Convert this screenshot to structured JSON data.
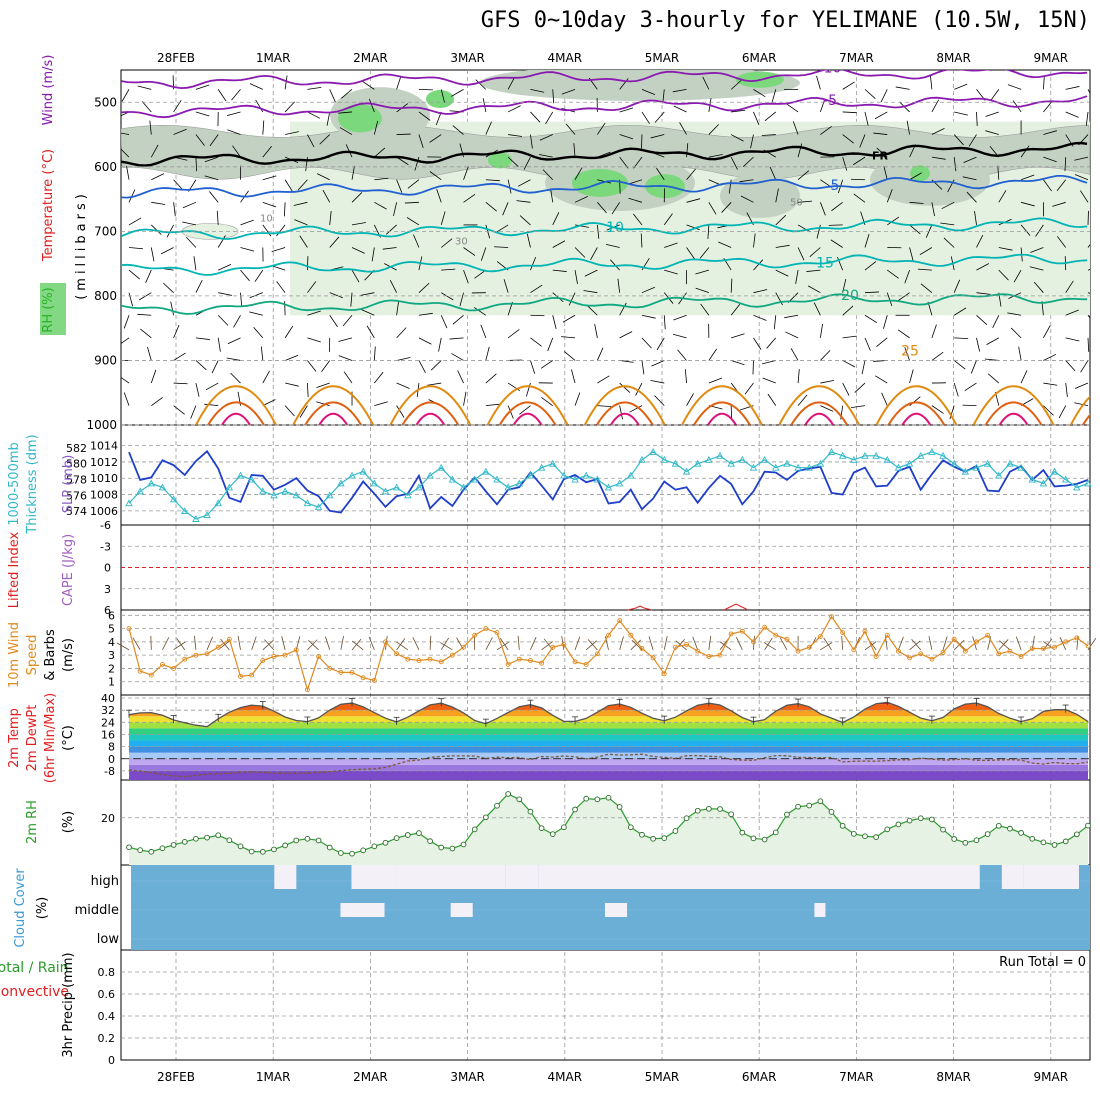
{
  "title": "GFS 0~10day 3-hourly for YELIMANE (10.5W, 15N)",
  "colors": {
    "temperature_cold": "#8a1ab0",
    "temperature_mid": "#2060d0",
    "temperature_warm": "#00b4b4",
    "temperature_hot": "#e08a10",
    "freezing": "#000000",
    "rh_light": "#e4f0e0",
    "rh_mid": "#c3d1c3",
    "rh_high": "#7cd87c",
    "slp": "#1f3fc8",
    "thickness": "#33b8c8",
    "lifted_index": "#e02020",
    "wind_speed": "#e08a20",
    "rh2m": "#2a9d2a",
    "cloud": "#6baed6",
    "cloud_clear": "#f3f0f8"
  },
  "chart_data": [
    {
      "id": "upper",
      "type": "contour",
      "ylabels": [
        "Wind (m/s)",
        "Temperature (°C)",
        "RH (%)",
        "(millibars)"
      ],
      "yticks": [
        500,
        600,
        700,
        800,
        900,
        1000
      ],
      "yrange": [
        1000,
        450
      ],
      "x_ticks": [
        "28FEB",
        "1MAR",
        "2MAR",
        "3MAR",
        "4MAR",
        "5MAR",
        "6MAR",
        "7MAR",
        "8MAR",
        "9MAR"
      ],
      "temperature_levels": [
        {
          "label": "-10",
          "pressure": 470
        },
        {
          "label": "-5",
          "pressure": 515
        },
        {
          "label": "FR",
          "pressure": 590
        },
        {
          "label": "5",
          "pressure": 640
        },
        {
          "label": "10",
          "pressure": 705
        },
        {
          "label": "15",
          "pressure": 760
        },
        {
          "label": "20",
          "pressure": 820
        },
        {
          "label": "25",
          "pressure": 895
        }
      ],
      "rh_labels": [
        "10",
        "30",
        "50"
      ]
    },
    {
      "id": "slp_thickness",
      "type": "line",
      "ylabels": [
        "1000-500mb",
        "Thickness (dm)",
        "SLP (mb)"
      ],
      "left_ticks": [
        574,
        576,
        578,
        580,
        582
      ],
      "right_ticks": [
        1006,
        1008,
        1010,
        1012,
        1014
      ],
      "series": [
        {
          "name": "SLP (mb)",
          "values": [
            1013.2,
            1009.8,
            1010.1,
            1012.2,
            1011.6,
            1010.4,
            1012.1,
            1013.3,
            1011.2,
            1007.6,
            1007.1,
            1010.4,
            1010.3,
            1008.6,
            1009.2,
            1010.0,
            1008.5,
            1007.8,
            1006.0,
            1005.8,
            1007.6,
            1009.6,
            1008.1,
            1006.5,
            1007.8,
            1008.1,
            1010.3,
            1006.3,
            1007.7,
            1006.6,
            1008.6,
            1010.1,
            1008.4,
            1006.8,
            1008.6,
            1008.9,
            1010.7,
            1009.1,
            1007.4,
            1009.9,
            1010.4,
            1009.5,
            1009.9,
            1006.9,
            1007.1,
            1008.6,
            1006.2,
            1007.5,
            1009.6,
            1008.6,
            1008.9,
            1007.0,
            1008.8,
            1010.3,
            1009.3,
            1006.8,
            1008.4,
            1010.8,
            1010.7,
            1009.8,
            1010.9,
            1011.2,
            1011.4,
            1008.2,
            1008.0,
            1010.7,
            1011.3,
            1009.0,
            1009.1,
            1010.9,
            1011.4,
            1008.6,
            1010.5,
            1012.2,
            1011.4,
            1010.8,
            1011.5,
            1008.5,
            1008.4,
            1010.8,
            1011.5,
            1009.8,
            1011.0,
            1009.0,
            1009.1,
            1009.3,
            1009.8
          ]
        },
        {
          "name": "1000-500mb Thickness (dm)",
          "values": [
            575.0,
            576.5,
            577.5,
            577.0,
            575.5,
            574.0,
            573.0,
            573.5,
            575.0,
            577.0,
            578.5,
            578.0,
            576.5,
            576.0,
            576.5,
            576.0,
            575.0,
            574.5,
            576.0,
            577.5,
            578.5,
            579.0,
            577.5,
            576.5,
            577.0,
            576.0,
            577.0,
            578.5,
            579.5,
            578.0,
            577.0,
            578.0,
            579.0,
            578.0,
            577.0,
            577.5,
            578.5,
            579.5,
            580.0,
            578.5,
            578.0,
            578.5,
            578.0,
            577.0,
            577.5,
            578.5,
            580.5,
            581.5,
            580.5,
            580.0,
            579.0,
            580.0,
            580.5,
            581.0,
            580.0,
            580.5,
            579.5,
            580.5,
            579.5,
            580.0,
            579.5,
            579.5,
            580.0,
            581.5,
            581.0,
            580.5,
            581.0,
            581.0,
            580.5,
            579.5,
            580.0,
            581.0,
            581.5,
            581.0,
            580.0,
            579.0,
            579.5,
            580.0,
            578.5,
            580.0,
            579.5,
            578.0,
            577.5,
            579.0,
            578.0,
            577.0,
            577.5
          ]
        }
      ]
    },
    {
      "id": "cape_li",
      "type": "line",
      "ylabels": [
        "Lifted Index",
        "CAPE (J/kg)"
      ],
      "yticks": [
        "6",
        "3",
        "0",
        "-3",
        "-6"
      ],
      "yrange": [
        6,
        -6
      ],
      "series": [
        {
          "name": "Lifted Index",
          "values": [
            0,
            0,
            0,
            0,
            0,
            0,
            0,
            0,
            0,
            0,
            0,
            0,
            0,
            0,
            0,
            0,
            0,
            0,
            0,
            0,
            0,
            0,
            0,
            0,
            0,
            0,
            0,
            0,
            0,
            0,
            0,
            0,
            0,
            0,
            0,
            0,
            0,
            0,
            0,
            0,
            0,
            0,
            0,
            0,
            0,
            0,
            0,
            0,
            0,
            0,
            0,
            0,
            0,
            0,
            0,
            0,
            0,
            0,
            0,
            0,
            0,
            0,
            0,
            0,
            0,
            0,
            0,
            0,
            0,
            0,
            0,
            0,
            0,
            0,
            0,
            0,
            0,
            0,
            0,
            0,
            0,
            0,
            0,
            0,
            0,
            0,
            0
          ]
        }
      ],
      "zero_line": 0
    },
    {
      "id": "wind10m",
      "type": "line",
      "ylabels": [
        "10m Wind",
        "Speed",
        "& Barbs",
        "(m/s)"
      ],
      "yticks": [
        1,
        2,
        3,
        4,
        5,
        6
      ],
      "yrange": [
        0,
        6.4
      ],
      "series": [
        {
          "name": "10m Wind Speed",
          "values": [
            5.0,
            1.8,
            1.5,
            2.3,
            2.0,
            2.7,
            3.0,
            3.1,
            3.6,
            4.2,
            1.4,
            1.5,
            2.6,
            2.9,
            3.0,
            3.4,
            0.4,
            2.9,
            2.0,
            1.7,
            1.7,
            1.3,
            1.1,
            4.0,
            3.1,
            2.7,
            2.6,
            2.7,
            2.5,
            3.0,
            3.6,
            4.5,
            5.0,
            4.7,
            2.3,
            2.7,
            2.6,
            2.4,
            3.6,
            3.8,
            2.5,
            2.3,
            3.1,
            4.5,
            5.6,
            4.5,
            3.5,
            2.8,
            1.6,
            3.6,
            3.8,
            3.3,
            2.9,
            3.0,
            4.6,
            4.8,
            4.0,
            5.1,
            4.5,
            4.2,
            3.3,
            3.6,
            4.4,
            5.9,
            4.7,
            3.4,
            4.8,
            2.9,
            4.5,
            3.3,
            2.8,
            3.1,
            2.7,
            3.2,
            4.2,
            3.3,
            4.0,
            4.5,
            3.1,
            3.3,
            2.9,
            3.5,
            3.5,
            3.6,
            4.0,
            4.3,
            3.7
          ]
        }
      ]
    },
    {
      "id": "temp2m",
      "type": "area",
      "ylabels": [
        "2m Temp",
        "2m DewPt",
        "(6hr Min/Max)",
        "(°C)"
      ],
      "yticks": [
        -8,
        0,
        8,
        16,
        24,
        32,
        40
      ],
      "yrange": [
        -14,
        42
      ],
      "series": [
        {
          "name": "2m Temp",
          "values": [
            29.0,
            30.2,
            30.4,
            28.6,
            25.5,
            23.7,
            22.1,
            21.1,
            26.3,
            30.7,
            33.7,
            35.3,
            34.7,
            31.3,
            27.5,
            25.2,
            24.5,
            26.9,
            32.1,
            35.9,
            36.7,
            34.2,
            30.4,
            26.7,
            24.3,
            27.4,
            31.6,
            35.5,
            36.6,
            34.1,
            30.2,
            25.2,
            23.1,
            26.6,
            30.5,
            34.3,
            35.6,
            33.5,
            28.6,
            24.7,
            24.6,
            26.6,
            30.7,
            35.0,
            36.1,
            33.9,
            30.0,
            26.7,
            25.1,
            27.4,
            31.6,
            35.3,
            36.6,
            35.4,
            31.6,
            27.1,
            24.4,
            25.7,
            31.3,
            35.2,
            36.3,
            34.2,
            29.6,
            26.8,
            23.9,
            27.6,
            32.7,
            36.3,
            37.2,
            34.5,
            30.7,
            26.8,
            25.1,
            27.2,
            32.9,
            36.0,
            36.7,
            34.3,
            29.8,
            26.7,
            24.5,
            26.3,
            31.2,
            32.3,
            32.4,
            29.3,
            24.5
          ]
        },
        {
          "name": "2m DewPt",
          "values": [
            -7.4,
            -8.2,
            -9.2,
            -10.5,
            -11.3,
            -11.8,
            -11.0,
            -10.2,
            -9.8,
            -9.6,
            -8.9,
            -8.6,
            -8.9,
            -9.5,
            -9.5,
            -9.6,
            -9.4,
            -8.9,
            -8.6,
            -7.8,
            -7.2,
            -6.9,
            -6.6,
            -5.7,
            -3.6,
            -1.5,
            -0.8,
            0.9,
            1.5,
            1.9,
            1.9,
            1.8,
            0.2,
            1.0,
            0.7,
            0.8,
            -0.6,
            1.5,
            1.1,
            1.8,
            1.3,
            -0.1,
            1.1,
            3.0,
            2.4,
            2.6,
            3.0,
            1.5,
            0.9,
            0.2,
            2.0,
            2.1,
            1.6,
            1.3,
            -0.5,
            -0.9,
            -1.1,
            0.7,
            2.1,
            2.0,
            0.9,
            0.8,
            0.6,
            0.8,
            -2.1,
            -1.7,
            -1.5,
            -1.6,
            -1.3,
            -0.7,
            -0.7,
            0.4,
            -0.3,
            -0.9,
            -0.6,
            0.0,
            -1.0,
            -1.1,
            -0.8,
            -0.6,
            -0.9,
            -2.8,
            -3.5,
            -2.4,
            -3.2,
            -3.3,
            -2.2
          ]
        }
      ]
    },
    {
      "id": "rh2m",
      "type": "line",
      "ylabels": [
        "2m RH",
        "(%)"
      ],
      "yticks": [
        20
      ],
      "yrange": [
        0,
        36
      ],
      "series": [
        {
          "name": "2m RH",
          "values": [
            7.5,
            6.3,
            5.6,
            7.1,
            8.5,
            9.8,
            11.1,
            11.6,
            12.6,
            10.5,
            7.9,
            5.7,
            5.6,
            6.6,
            8.3,
            10.4,
            11.1,
            10.4,
            7.4,
            5.1,
            4.8,
            6.2,
            7.9,
            9.4,
            11.4,
            12.7,
            13.5,
            10.1,
            7.4,
            7.0,
            8.7,
            15.1,
            20.2,
            25.1,
            30.1,
            27.8,
            22.6,
            15.6,
            13.1,
            16.0,
            23.5,
            28.1,
            27.8,
            28.5,
            24.6,
            16.0,
            12.8,
            11.1,
            11.4,
            14.4,
            19.8,
            23.0,
            23.8,
            23.7,
            21.5,
            13.7,
            11.3,
            10.8,
            13.8,
            21.4,
            24.7,
            25.2,
            27.0,
            22.5,
            16.6,
            13.2,
            12.2,
            11.8,
            15.1,
            17.2,
            18.8,
            19.8,
            19.3,
            15.0,
            11.0,
            9.4,
            10.5,
            13.1,
            16.6,
            15.4,
            13.6,
            11.1,
            9.6,
            8.5,
            10.0,
            13.0,
            16.7
          ]
        }
      ]
    },
    {
      "id": "cloud",
      "type": "heatmap",
      "ylabels": [
        "Cloud Cover",
        "(%)"
      ],
      "rows": [
        "high",
        "middle",
        "low"
      ]
    },
    {
      "id": "precip",
      "type": "bar",
      "ylabels": [
        "Total / Rain",
        "Convective",
        "3hr Precip (mm)"
      ],
      "yticks": [
        "0",
        "0.2",
        "0.4",
        "0.6",
        "0.8"
      ],
      "yrange": [
        0,
        1.0
      ],
      "annotation": "Run Total = 0",
      "values": []
    }
  ]
}
